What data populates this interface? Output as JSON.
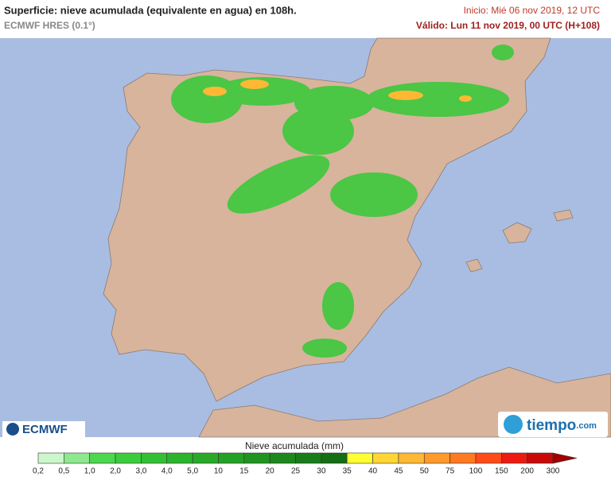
{
  "header": {
    "title": "Superficie: nieve acumulada (equivalente en agua) en 108h.",
    "subtitle": "ECMWF HRES (0.1°)",
    "init": "Inicio: Mié 06 nov 2019, 12 UTC",
    "valid": "Válido: Lun 11 nov 2019, 00 UTC (H+108)"
  },
  "legend": {
    "label": "Nieve acumulada (mm)",
    "ticks": [
      "0,2",
      "0,5",
      "1,0",
      "2,0",
      "3,0",
      "4,0",
      "5,0",
      "10",
      "15",
      "20",
      "25",
      "30",
      "35",
      "40",
      "45",
      "50",
      "75",
      "100",
      "150",
      "200",
      "300"
    ],
    "colors": [
      "#ccf7cc",
      "#8ee88e",
      "#4cd84c",
      "#3ccc3c",
      "#34c034",
      "#2cb42c",
      "#28aa28",
      "#24a024",
      "#209420",
      "#1c881c",
      "#187c18",
      "#146e14",
      "#ffff33",
      "#ffd633",
      "#ffb833",
      "#ff9a2a",
      "#ff7a22",
      "#ff4a1a",
      "#ee1a10",
      "#c80a0a",
      "#a00000"
    ]
  },
  "logos": {
    "ecmwf": "ECMWF",
    "tiempo": "tiempo",
    "tiempo_suffix": ".com"
  }
}
